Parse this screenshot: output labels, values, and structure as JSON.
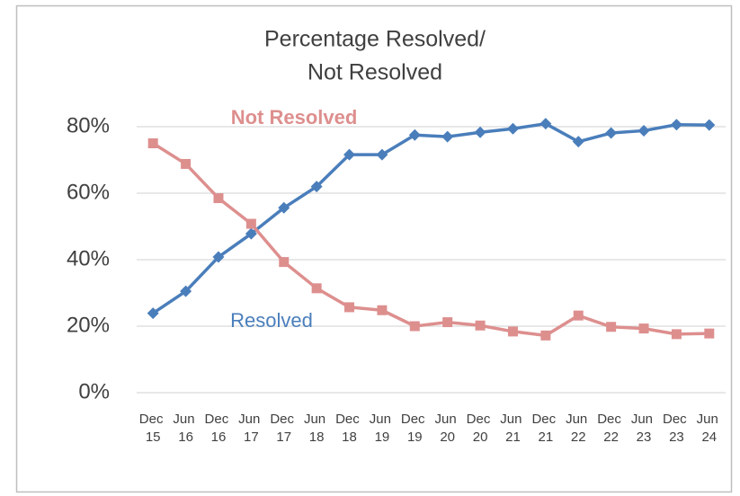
{
  "chart_data": {
    "type": "line",
    "title": [
      "Percentage Resolved/",
      "Not Resolved"
    ],
    "categories": [
      "Dec 15",
      "Jun 16",
      "Dec 16",
      "Jun 17",
      "Dec 17",
      "Jun 18",
      "Dec 18",
      "Jun 19",
      "Dec 19",
      "Jun 20",
      "Dec 20",
      "Jun 21",
      "Dec 21",
      "Jun 22",
      "Dec 22",
      "Jun 23",
      "Dec 23",
      "Jun 24"
    ],
    "series": [
      {
        "name": "Resolved",
        "color": "#4a7ebb",
        "marker": "diamond",
        "values": [
          23.9,
          30.5,
          40.8,
          47.8,
          55.6,
          62.0,
          71.6,
          71.6,
          77.5,
          77.0,
          78.3,
          79.4,
          80.9,
          75.5,
          78.1,
          78.8,
          80.6,
          80.5
        ]
      },
      {
        "name": "Not Resolved",
        "color": "#dd8f8e",
        "marker": "square",
        "values": [
          75.0,
          68.8,
          58.5,
          50.8,
          39.3,
          31.4,
          25.7,
          24.8,
          20.0,
          21.2,
          20.2,
          18.4,
          17.2,
          23.2,
          19.8,
          19.3,
          17.6,
          17.8
        ]
      }
    ],
    "ylim": [
      0,
      80
    ],
    "yticks": [
      {
        "value": 0,
        "label": "0%"
      },
      {
        "value": 20,
        "label": "20%"
      },
      {
        "value": 40,
        "label": "40%"
      },
      {
        "value": 60,
        "label": "60%"
      },
      {
        "value": 80,
        "label": "80%"
      }
    ],
    "grid": true
  }
}
